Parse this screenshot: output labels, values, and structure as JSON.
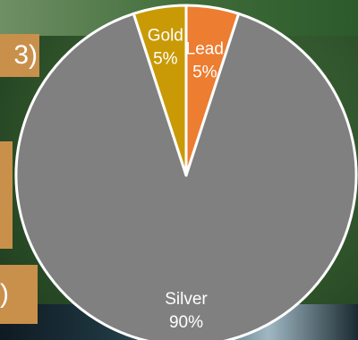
{
  "side_boxes": {
    "top_text": "3)",
    "middle_text": "",
    "bottom_text": ")"
  },
  "chart_data": {
    "type": "pie",
    "slices": [
      {
        "label": "Lead",
        "value": 5,
        "percent_label": "5%",
        "color": "#ed7d31"
      },
      {
        "label": "Silver",
        "value": 90,
        "percent_label": "90%",
        "color": "#808080"
      },
      {
        "label": "Gold",
        "value": 5,
        "percent_label": "5%",
        "color": "#c99a06"
      }
    ],
    "start_angle_deg": 0,
    "direction": "clockwise",
    "slice_border_color": "#ffffff",
    "label_color": "#ffffff",
    "title": "",
    "legend": "none"
  }
}
